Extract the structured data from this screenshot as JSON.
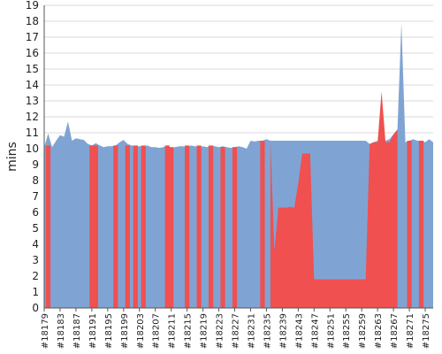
{
  "chart_data": {
    "type": "area",
    "title": "",
    "xlabel": "",
    "ylabel": "mins",
    "ylim": [
      0,
      19
    ],
    "yticks": [
      0,
      1,
      2,
      3,
      4,
      5,
      6,
      7,
      8,
      9,
      10,
      11,
      12,
      13,
      14,
      15,
      16,
      17,
      18,
      19
    ],
    "grid": true,
    "x_start": 18179,
    "x_end": 18277,
    "x_ticks": [
      "#18179",
      "#18183",
      "#18187",
      "#18191",
      "#18195",
      "#18199",
      "#18203",
      "#18207",
      "#18211",
      "#18215",
      "#18219",
      "#18223",
      "#18227",
      "#18231",
      "#18235",
      "#18239",
      "#18243",
      "#18247",
      "#18251",
      "#18255",
      "#18259",
      "#18263",
      "#18267",
      "#18271",
      "#18275"
    ],
    "series": [
      {
        "color": "#7fa4d4",
        "points": [
          [
            18179,
            10.1
          ],
          [
            18180,
            10.95
          ],
          [
            18181,
            10.1
          ],
          [
            18182,
            10.5
          ],
          [
            18183,
            10.85
          ],
          [
            18184,
            10.75
          ],
          [
            18185,
            11.7
          ],
          [
            18186,
            10.5
          ],
          [
            18187,
            10.65
          ],
          [
            18188,
            10.6
          ],
          [
            18189,
            10.55
          ],
          [
            18190,
            10.3
          ],
          [
            18191,
            10.2
          ],
          [
            18192,
            10.35
          ],
          [
            18193,
            10.2
          ],
          [
            18194,
            10.1
          ],
          [
            18195,
            10.15
          ],
          [
            18196,
            10.15
          ],
          [
            18197,
            10.2
          ],
          [
            18198,
            10.4
          ],
          [
            18199,
            10.55
          ],
          [
            18200,
            10.3
          ],
          [
            18201,
            10.2
          ],
          [
            18202,
            10.15
          ],
          [
            18203,
            10.15
          ],
          [
            18204,
            10.15
          ],
          [
            18205,
            10.2
          ],
          [
            18206,
            10.1
          ],
          [
            18207,
            10.1
          ],
          [
            18208,
            10.05
          ],
          [
            18209,
            10.1
          ],
          [
            18210,
            10.2
          ],
          [
            18211,
            10.05
          ],
          [
            18212,
            10.1
          ],
          [
            18213,
            10.15
          ],
          [
            18214,
            10.15
          ],
          [
            18215,
            10.1
          ],
          [
            18216,
            10.2
          ],
          [
            18217,
            10.15
          ],
          [
            18218,
            10.1
          ],
          [
            18219,
            10.15
          ],
          [
            18220,
            10.1
          ],
          [
            18221,
            10.2
          ],
          [
            18222,
            10.15
          ],
          [
            18223,
            10.1
          ],
          [
            18224,
            10.15
          ],
          [
            18225,
            10.1
          ],
          [
            18226,
            10.05
          ],
          [
            18227,
            10.1
          ],
          [
            18228,
            10.15
          ],
          [
            18229,
            10.1
          ],
          [
            18230,
            10.0
          ],
          [
            18231,
            10.5
          ],
          [
            18232,
            10.45
          ],
          [
            18233,
            10.5
          ],
          [
            18234,
            10.5
          ],
          [
            18235,
            10.6
          ],
          [
            18236,
            10.5
          ],
          [
            18260,
            10.5
          ],
          [
            18261,
            10.3
          ],
          [
            18262,
            10.4
          ],
          [
            18263,
            10.5
          ],
          [
            18264,
            10.4
          ],
          [
            18265,
            10.5
          ],
          [
            18266,
            10.6
          ],
          [
            18267,
            10.9
          ],
          [
            18268,
            11.2
          ],
          [
            18269,
            17.9
          ],
          [
            18270,
            10.4
          ],
          [
            18271,
            10.5
          ],
          [
            18272,
            10.6
          ],
          [
            18273,
            10.5
          ],
          [
            18274,
            10.5
          ],
          [
            18275,
            10.4
          ],
          [
            18276,
            10.6
          ],
          [
            18277,
            10.4
          ]
        ]
      },
      {
        "color": "#f05050",
        "points": [
          [
            18236,
            10.5
          ],
          [
            18237,
            3.6
          ],
          [
            18238,
            6.3
          ],
          [
            18239,
            6.3
          ],
          [
            18240,
            6.3
          ],
          [
            18241,
            6.35
          ],
          [
            18242,
            6.3
          ],
          [
            18243,
            7.8
          ],
          [
            18244,
            9.7
          ],
          [
            18245,
            9.7
          ],
          [
            18246,
            9.7
          ],
          [
            18247,
            1.8
          ],
          [
            18248,
            1.8
          ],
          [
            18249,
            1.8
          ],
          [
            18250,
            1.8
          ],
          [
            18251,
            1.8
          ],
          [
            18252,
            1.8
          ],
          [
            18253,
            1.8
          ],
          [
            18254,
            1.8
          ],
          [
            18255,
            1.8
          ],
          [
            18256,
            1.8
          ],
          [
            18257,
            1.8
          ],
          [
            18258,
            1.8
          ],
          [
            18259,
            1.8
          ],
          [
            18260,
            1.8
          ],
          [
            18261,
            10.3
          ],
          [
            18262,
            10.4
          ],
          [
            18263,
            10.4
          ],
          [
            18264,
            13.6
          ],
          [
            18265,
            10.4
          ],
          [
            18266,
            10.4
          ],
          [
            18267,
            10.9
          ],
          [
            18268,
            11.2
          ]
        ]
      }
    ],
    "failed_builds": [
      [
        18180,
        10.2
      ],
      [
        18191,
        10.2
      ],
      [
        18192,
        10.2
      ],
      [
        18197,
        10.2
      ],
      [
        18200,
        10.2
      ],
      [
        18202,
        10.2
      ],
      [
        18204,
        10.2
      ],
      [
        18210,
        10.2
      ],
      [
        18211,
        10.1
      ],
      [
        18215,
        10.2
      ],
      [
        18218,
        10.2
      ],
      [
        18221,
        10.2
      ],
      [
        18224,
        10.1
      ],
      [
        18227,
        10.1
      ],
      [
        18234,
        10.5
      ],
      [
        18271,
        10.5
      ],
      [
        18274,
        10.5
      ]
    ]
  }
}
